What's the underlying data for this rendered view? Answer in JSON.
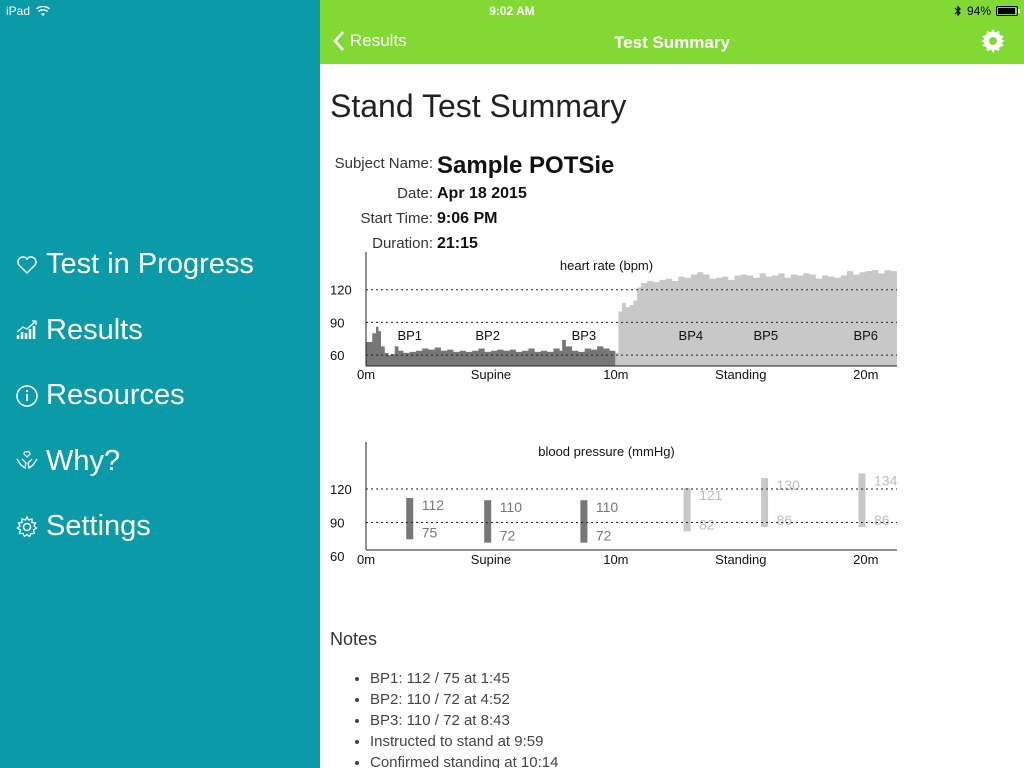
{
  "statusbar": {
    "device": "iPad",
    "time": "9:02 AM",
    "battery": "94%"
  },
  "sidebar": {
    "items": [
      {
        "label": "Test in Progress",
        "icon": "heart-icon"
      },
      {
        "label": "Results",
        "icon": "chart-icon"
      },
      {
        "label": "Resources",
        "icon": "info-icon"
      },
      {
        "label": "Why?",
        "icon": "hands-icon"
      },
      {
        "label": "Settings",
        "icon": "gear-icon"
      }
    ]
  },
  "navbar": {
    "back_label": "Results",
    "title": "Test Summary",
    "settings_icon": "gear-icon"
  },
  "page": {
    "title": "Stand Test Summary"
  },
  "meta": {
    "subject_label": "Subject Name:",
    "subject_value": "Sample POTSie",
    "date_label": "Date:",
    "date_value": "Apr 18 2015",
    "start_label": "Start Time:",
    "start_value": "9:06 PM",
    "duration_label": "Duration:",
    "duration_value": "21:15"
  },
  "colors": {
    "sidebar": "#0b9aa7",
    "navbar": "#82d934",
    "supine": "#777777",
    "standing": "#c8c8c8"
  },
  "chart_data": [
    {
      "type": "area",
      "title": "heart rate (bpm)",
      "x_unit": "min",
      "xlim": [
        0,
        21.25
      ],
      "ylim": [
        50,
        150
      ],
      "yticks": [
        60,
        90,
        120
      ],
      "xtick_labels": [
        "0m",
        "10m",
        "20m"
      ],
      "xtick_values": [
        0,
        10,
        20
      ],
      "phase_labels": [
        {
          "label": "Supine",
          "x": 5
        },
        {
          "label": "Standing",
          "x": 15
        }
      ],
      "markers": [
        {
          "label": "BP1",
          "x": 1.75
        },
        {
          "label": "BP2",
          "x": 4.87
        },
        {
          "label": "BP3",
          "x": 8.72
        },
        {
          "label": "BP4",
          "x": 13
        },
        {
          "label": "BP5",
          "x": 16
        },
        {
          "label": "BP6",
          "x": 20
        }
      ],
      "stand_at": 9.98,
      "series": [
        {
          "phase": "supine",
          "x": [
            0,
            0.25,
            0.4,
            0.5,
            0.6,
            0.75,
            0.9,
            1.0,
            1.15,
            1.3,
            1.5,
            1.75,
            2.0,
            2.25,
            2.5,
            2.75,
            3.0,
            3.25,
            3.5,
            3.75,
            4.0,
            4.25,
            4.5,
            4.75,
            5.0,
            5.25,
            5.5,
            5.75,
            6.0,
            6.25,
            6.5,
            6.75,
            7.0,
            7.25,
            7.5,
            7.75,
            7.85,
            8.0,
            8.25,
            8.5,
            8.75,
            9.0,
            9.25,
            9.5,
            9.75,
            9.98
          ],
          "y": [
            72,
            80,
            86,
            82,
            68,
            62,
            60,
            61,
            68,
            64,
            62,
            63,
            64,
            66,
            65,
            67,
            64,
            65,
            63,
            64,
            63,
            64,
            66,
            63,
            64,
            65,
            64,
            65,
            63,
            64,
            66,
            63,
            64,
            63,
            66,
            64,
            74,
            68,
            64,
            63,
            66,
            65,
            68,
            66,
            64,
            62
          ]
        },
        {
          "phase": "standing",
          "x": [
            9.98,
            10.1,
            10.25,
            10.4,
            10.55,
            10.7,
            10.85,
            11.0,
            11.25,
            11.5,
            11.75,
            12.0,
            12.25,
            12.5,
            12.75,
            13.0,
            13.25,
            13.5,
            13.75,
            14.0,
            14.25,
            14.5,
            14.75,
            15.0,
            15.25,
            15.5,
            15.75,
            16.0,
            16.25,
            16.5,
            16.75,
            17.0,
            17.25,
            17.5,
            17.75,
            18.0,
            18.25,
            18.5,
            18.75,
            19.0,
            19.25,
            19.5,
            19.75,
            20.0,
            20.25,
            20.5,
            20.75,
            21.0,
            21.25
          ],
          "y": [
            62,
            100,
            108,
            104,
            106,
            110,
            122,
            126,
            128,
            127,
            129,
            130,
            128,
            132,
            131,
            134,
            136,
            134,
            130,
            131,
            132,
            129,
            133,
            134,
            133,
            131,
            135,
            132,
            133,
            135,
            131,
            134,
            133,
            135,
            134,
            130,
            133,
            132,
            131,
            133,
            137,
            134,
            136,
            137,
            138,
            135,
            138,
            137,
            136
          ]
        }
      ]
    },
    {
      "type": "bar",
      "title": "blood pressure (mmHg)",
      "x_unit": "min",
      "xlim": [
        0,
        21.25
      ],
      "ylim": [
        60,
        150
      ],
      "yticks": [
        60,
        90,
        120
      ],
      "xtick_labels": [
        "0m",
        "10m",
        "20m"
      ],
      "xtick_values": [
        0,
        10,
        20
      ],
      "phase_labels": [
        {
          "label": "Supine",
          "x": 5
        },
        {
          "label": "Standing",
          "x": 15
        }
      ],
      "readings": [
        {
          "label": "BP1",
          "x": 1.75,
          "systolic": 112,
          "diastolic": 75,
          "phase": "supine"
        },
        {
          "label": "BP2",
          "x": 4.87,
          "systolic": 110,
          "diastolic": 72,
          "phase": "supine"
        },
        {
          "label": "BP3",
          "x": 8.72,
          "systolic": 110,
          "diastolic": 72,
          "phase": "supine"
        },
        {
          "label": "BP4",
          "x": 12.85,
          "systolic": 121,
          "diastolic": 82,
          "phase": "standing"
        },
        {
          "label": "BP5",
          "x": 15.95,
          "systolic": 130,
          "diastolic": 86,
          "phase": "standing"
        },
        {
          "label": "BP6",
          "x": 19.85,
          "systolic": 134,
          "diastolic": 86,
          "phase": "standing"
        }
      ]
    }
  ],
  "notes": {
    "title": "Notes",
    "items": [
      "BP1: 112 / 75 at 1:45",
      "BP2: 110 / 72 at 4:52",
      "BP3: 110 / 72 at 8:43",
      "Instructed to stand at 9:59",
      "Confirmed standing at 10:14"
    ]
  }
}
